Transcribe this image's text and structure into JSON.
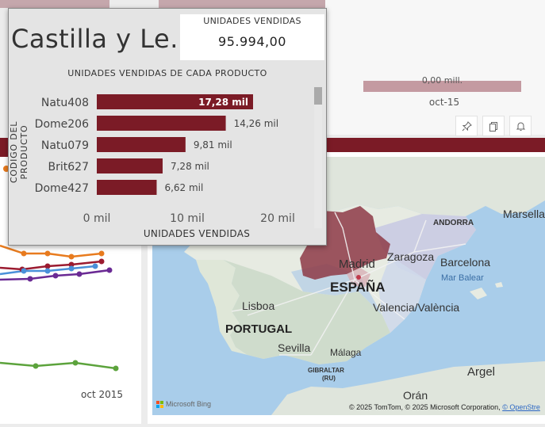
{
  "header": {
    "title": "Castilla y Le..."
  },
  "kpi": {
    "label": "UNIDADES VENDIDAS",
    "value": "95.994,00"
  },
  "right_chart": {
    "zero_label": "0,00 mill.",
    "x_label": "oct-15"
  },
  "line_chart": {
    "x_label": "oct 2015"
  },
  "toolbar": {
    "icons": [
      "pin-icon",
      "copy-icon",
      "bell-icon"
    ]
  },
  "chart_data": {
    "type": "bar",
    "orientation": "horizontal",
    "title": "UNIDADES VENDIDAS DE CADA PRODUCTO",
    "xlabel": "UNIDADES VENDIDAS",
    "ylabel": "CODIGO DEL PRODUCTO",
    "categories": [
      "Natu408",
      "Dome206",
      "Natu079",
      "Brit627",
      "Dome427"
    ],
    "values": [
      17280,
      14260,
      9810,
      7280,
      6620
    ],
    "value_labels": [
      "17,28 mil",
      "14,26 mil",
      "9,81 mil",
      "7,28 mil",
      "6,62 mil"
    ],
    "xlim": [
      0,
      20000
    ],
    "xticks": [
      0,
      10000,
      20000
    ],
    "xtick_labels": [
      "0 mil",
      "10 mil",
      "20 mil"
    ],
    "bar_color": "#7b1b26"
  },
  "map": {
    "labels": {
      "andorra": "ANDORRA",
      "marseille": "Marsella",
      "madrid": "Madrid",
      "zaragoza": "Zaragoza",
      "barcelona": "Barcelona",
      "mar_balear": "Mar Balear",
      "espana": "ESPAÑA",
      "lisboa": "Lisboa",
      "valencia": "Valencia/València",
      "portugal": "PORTUGAL",
      "sevilla": "Sevilla",
      "malaga": "Málaga",
      "gibraltar": "GIBRALTAR",
      "gibraltar_ru": "(RU)",
      "argel": "Argel",
      "oran": "Orán"
    },
    "copyright": "© 2025 TomTom, © 2025 Microsoft Corporation,",
    "copyright_link": "© OpenStre",
    "bing": "Microsoft Bing"
  }
}
